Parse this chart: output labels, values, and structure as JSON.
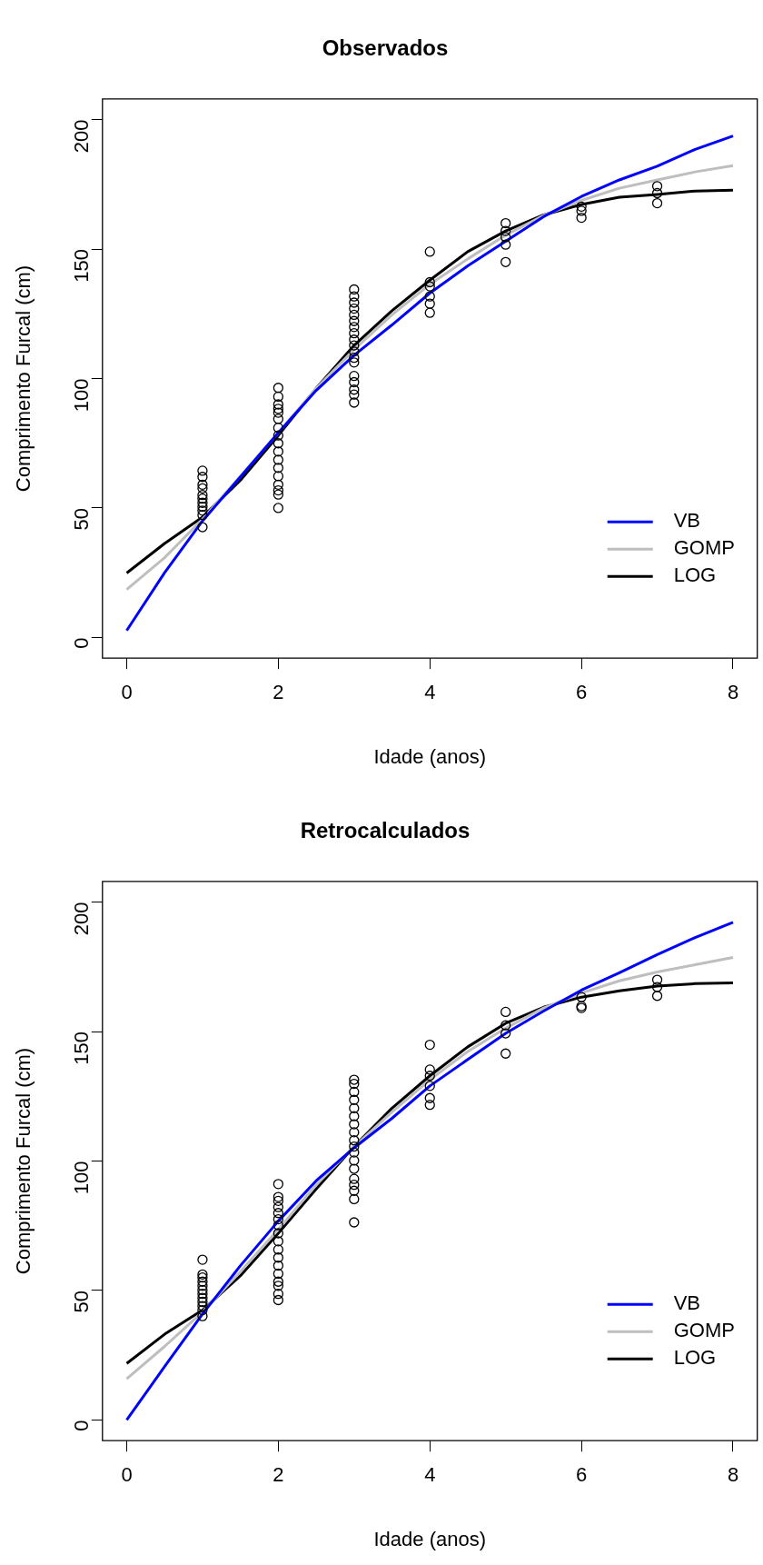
{
  "chart_data": [
    {
      "type": "line",
      "title": "Observados",
      "xlabel": "Idade (anos)",
      "ylabel": "Comprimento Furcal (cm)",
      "xlim": [
        -0.32,
        8.32
      ],
      "xticks": [
        0,
        2,
        4,
        6,
        8
      ],
      "ylim": [
        -8,
        208
      ],
      "yticks": [
        0,
        50,
        100,
        150,
        200
      ],
      "grid": false,
      "legend": "bottom right",
      "line_style": "solid",
      "series": [
        {
          "type": "scatter",
          "color": "#000000",
          "marker": "circle",
          "x": [
            1,
            1,
            1,
            1,
            1,
            1,
            1,
            1,
            1,
            1,
            1,
            2,
            2,
            2,
            2,
            2,
            2,
            2,
            2,
            2,
            2,
            2,
            2,
            2,
            2,
            2,
            2,
            2,
            3,
            3,
            3,
            3,
            3,
            3,
            3,
            3,
            3,
            3,
            3,
            3,
            3,
            3,
            3,
            3,
            3,
            3,
            4,
            4,
            4,
            4,
            4,
            4,
            5,
            5,
            5,
            5,
            5,
            6,
            6,
            6,
            7,
            7,
            7
          ],
          "values": [
            64.4,
            62,
            59,
            57.6,
            55,
            53.6,
            52,
            50.5,
            49,
            47.3,
            42.6,
            96.4,
            93,
            90,
            88.3,
            86.8,
            84.4,
            81,
            78,
            75,
            71.8,
            68.6,
            65.5,
            62.3,
            59,
            56.8,
            55.2,
            50,
            134.4,
            131.7,
            129.3,
            127,
            124.6,
            122.2,
            119.9,
            117.5,
            115,
            112.8,
            110.4,
            108,
            106.2,
            101,
            98.6,
            95.7,
            93.8,
            90.7,
            149,
            137.2,
            135.6,
            131.7,
            128.9,
            125.4,
            160,
            157,
            154.6,
            151.7,
            145,
            166.4,
            164.8,
            162.1,
            174.3,
            171.6,
            167.7
          ]
        },
        {
          "name": "VB",
          "color": "#0000ff",
          "marker": "none",
          "x": [
            0,
            0.5,
            1,
            1.5,
            2,
            2.5,
            3,
            3.5,
            4,
            4.5,
            5,
            5.5,
            6,
            6.5,
            7,
            7.5,
            8
          ],
          "values": [
            2.7,
            25,
            45,
            62,
            79,
            95.4,
            109,
            120.7,
            133,
            143.5,
            153,
            162.5,
            170.3,
            176.7,
            182,
            188.5,
            193.7
          ]
        },
        {
          "name": "GOMP",
          "color": "#bebebe",
          "marker": "none",
          "x": [
            0,
            0.5,
            1,
            1.5,
            2,
            2.5,
            3,
            3.5,
            4,
            4.5,
            5,
            5.5,
            6,
            6.5,
            7,
            7.5,
            8
          ],
          "values": [
            18.5,
            30.8,
            45.7,
            62.3,
            79,
            96.2,
            111.2,
            124.6,
            136.4,
            146.2,
            155.4,
            163,
            168.8,
            173.5,
            176.7,
            179.8,
            182.2
          ]
        },
        {
          "name": "LOG",
          "color": "#000000",
          "marker": "none",
          "x": [
            0,
            0.5,
            1,
            1.5,
            2,
            2.5,
            3,
            3.5,
            4,
            4.5,
            5,
            5.5,
            6,
            6.5,
            7,
            7.5,
            8
          ],
          "values": [
            24.9,
            36.3,
            46.5,
            60.7,
            78,
            96.2,
            112.8,
            126.2,
            138,
            149,
            157,
            163.2,
            167.2,
            170,
            171.1,
            172.4,
            172.7
          ]
        }
      ]
    },
    {
      "type": "line",
      "title": "Retrocalculados",
      "xlabel": "Idade (anos)",
      "ylabel": "Comprimento Furcal (cm)",
      "xlim": [
        -0.32,
        8.32
      ],
      "xticks": [
        0,
        2,
        4,
        6,
        8
      ],
      "ylim": [
        -8,
        208
      ],
      "yticks": [
        0,
        50,
        100,
        150,
        200
      ],
      "grid": false,
      "legend": "bottom right",
      "line_style": "solid",
      "series": [
        {
          "type": "scatter",
          "color": "#000000",
          "marker": "circle",
          "x": [
            1,
            1,
            1,
            1,
            1,
            1,
            1,
            1,
            1,
            1,
            1,
            1,
            2,
            2,
            2,
            2,
            2,
            2,
            2,
            2,
            2,
            2,
            2,
            2,
            2,
            2,
            2,
            2,
            2,
            3,
            3,
            3,
            3,
            3,
            3,
            3,
            3,
            3,
            3,
            3,
            3,
            3,
            3,
            3,
            3,
            3,
            3,
            4,
            4,
            4,
            4,
            4,
            4,
            5,
            5,
            5,
            5,
            6,
            6,
            6,
            7,
            7,
            7
          ],
          "values": [
            61.9,
            56.2,
            55,
            53.4,
            51.8,
            50.2,
            48.7,
            47.1,
            45.6,
            44,
            42.4,
            40.1,
            91.1,
            86.1,
            84.6,
            82.2,
            79.9,
            77.5,
            75.2,
            72.1,
            69,
            65.8,
            62.7,
            59.6,
            56.5,
            53.4,
            51.8,
            48.7,
            46.3,
            131.4,
            129.8,
            126.7,
            123.6,
            120.4,
            117.3,
            114.2,
            111.1,
            108,
            105.6,
            103.3,
            100.2,
            97,
            93.1,
            90.8,
            88.5,
            85.3,
            76.3,
            144.9,
            135.3,
            132.9,
            129,
            124.3,
            121.7,
            157.6,
            152.4,
            149.3,
            141.5,
            163.3,
            159.8,
            159.1,
            170,
            167.2,
            163.8
          ]
        },
        {
          "name": "VB",
          "color": "#0000ff",
          "marker": "none",
          "x": [
            0,
            0.5,
            1,
            1.5,
            2,
            2.5,
            3,
            3.5,
            4,
            4.5,
            5,
            5.5,
            6,
            6.5,
            7,
            7.5,
            8
          ],
          "values": [
            0,
            20.6,
            40.9,
            59.6,
            76.8,
            92.4,
            105.1,
            116.5,
            129,
            139.2,
            149.3,
            157.9,
            166,
            172.7,
            179.7,
            186.3,
            192.2
          ]
        },
        {
          "name": "GOMP",
          "color": "#bebebe",
          "marker": "none",
          "x": [
            0,
            0.5,
            1,
            1.5,
            2,
            2.5,
            3,
            3.5,
            4,
            4.5,
            5,
            5.5,
            6,
            6.5,
            7,
            7.5,
            8
          ],
          "values": [
            15.9,
            28.4,
            41.7,
            57.3,
            73.6,
            90.8,
            105.6,
            118.9,
            131.4,
            142.3,
            151.3,
            159.1,
            164.9,
            169.6,
            173,
            175.8,
            178.6
          ]
        },
        {
          "name": "LOG",
          "color": "#000000",
          "marker": "none",
          "x": [
            0,
            0.5,
            1,
            1.5,
            2,
            2.5,
            3,
            3.5,
            4,
            4.5,
            5,
            5.5,
            6,
            6.5,
            7,
            7.5,
            8
          ],
          "values": [
            21.8,
            33.1,
            42.4,
            55.7,
            72.1,
            89.2,
            105.6,
            120.4,
            132.9,
            144.1,
            153.2,
            159.4,
            163.3,
            165.7,
            167.6,
            168.5,
            168.8
          ]
        }
      ]
    }
  ]
}
